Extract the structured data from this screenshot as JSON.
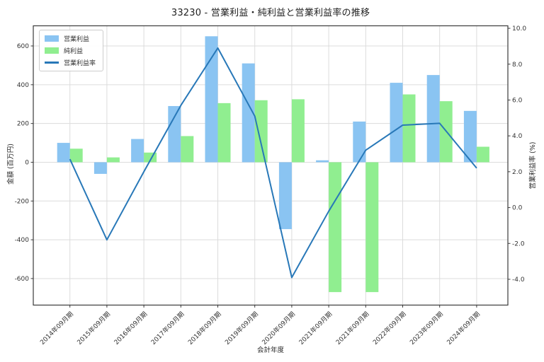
{
  "title": "33230 - 営業利益・純利益と営業利益率の推移",
  "chart_data": {
    "type": "bar",
    "title": "33230 - 営業利益・純利益と営業利益率の推移",
    "xlabel": "会計年度",
    "ylabel_left": "金額 (百万円)",
    "ylabel_right": "営業利益率 (%)",
    "categories": [
      "2014年09月期",
      "2015年09月期",
      "2016年09月期",
      "2017年09月期",
      "2018年09月期",
      "2019年09月期",
      "2020年09月期",
      "2021年09月期",
      "2021年09月期",
      "2022年09月期",
      "2023年09月期",
      "2024年09月期"
    ],
    "series": [
      {
        "name": "営業利益",
        "kind": "bar",
        "axis": "left",
        "color": "#8AC4F2",
        "values": [
          100,
          -60,
          120,
          290,
          650,
          510,
          -345,
          10,
          210,
          410,
          450,
          265
        ]
      },
      {
        "name": "純利益",
        "kind": "bar",
        "axis": "left",
        "color": "#90EE90",
        "values": [
          70,
          25,
          50,
          135,
          305,
          320,
          325,
          -670,
          -670,
          350,
          315,
          80
        ]
      },
      {
        "name": "営業利益率",
        "kind": "line",
        "axis": "right",
        "color": "#2878B8",
        "values": [
          2.7,
          -1.8,
          2.0,
          5.7,
          8.9,
          5.1,
          -3.9,
          -0.2,
          3.2,
          4.6,
          4.7,
          2.2
        ]
      }
    ],
    "yticks_left": [
      600,
      400,
      200,
      0,
      -200,
      -400,
      -600
    ],
    "yticks_right": [
      10.0,
      8.0,
      6.0,
      4.0,
      2.0,
      0.0,
      -2.0,
      -4.0
    ],
    "ylim_left": [
      -737,
      704
    ],
    "ylim_right": [
      -5.44,
      10.14
    ],
    "grid": true,
    "legend_position": "upper left"
  },
  "colors": {
    "bar_operating_profit": "#8AC4F2",
    "bar_net_profit": "#90EE90",
    "margin_line": "#2878B8",
    "grid": "#DCDCDC",
    "spine": "#3A3A3A",
    "tick_text": "#333333"
  }
}
